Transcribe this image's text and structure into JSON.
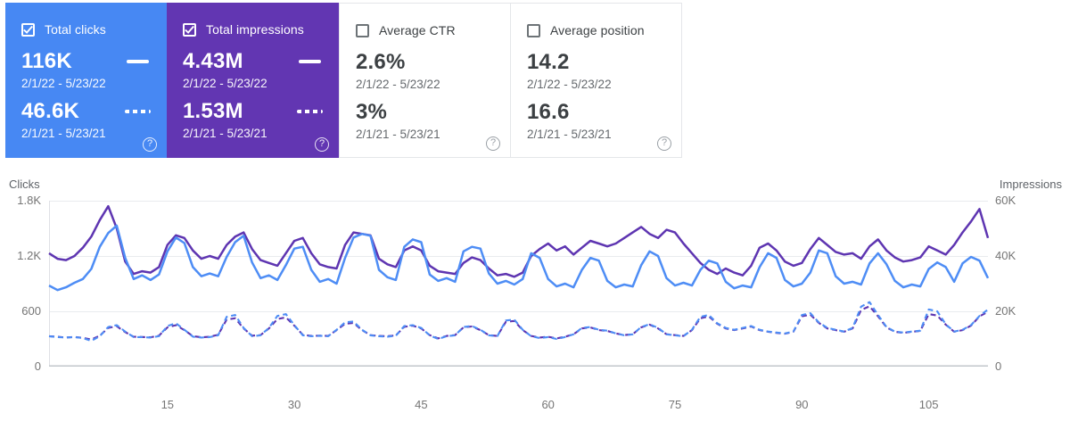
{
  "icons": {
    "help_glyph": "?"
  },
  "colors": {
    "clicks_card_bg": "#4788f3",
    "impressions_card_bg": "#6236b2",
    "clicks_line": "#4e8df5",
    "impressions_line": "#5e35b1",
    "gridline": "#e9ebee",
    "axis_line": "#c2c6cb",
    "tick_text": "#757575"
  },
  "cards": [
    {
      "label": "Total clicks",
      "checked": true,
      "current_value": "116K",
      "current_range": "2/1/22 - 5/23/22",
      "previous_value": "46.6K",
      "previous_range": "2/1/21 - 5/23/21"
    },
    {
      "label": "Total impressions",
      "checked": true,
      "current_value": "4.43M",
      "current_range": "2/1/22 - 5/23/22",
      "previous_value": "1.53M",
      "previous_range": "2/1/21 - 5/23/21"
    },
    {
      "label": "Average CTR",
      "checked": false,
      "current_value": "2.6%",
      "current_range": "2/1/22 - 5/23/22",
      "previous_value": "3%",
      "previous_range": "2/1/21 - 5/23/21"
    },
    {
      "label": "Average position",
      "checked": false,
      "current_value": "14.2",
      "current_range": "2/1/22 - 5/23/22",
      "previous_value": "16.6",
      "previous_range": "2/1/21 - 5/23/21"
    }
  ],
  "chart_data": {
    "type": "line",
    "days": 112,
    "x_ticks": [
      15,
      30,
      45,
      60,
      75,
      90,
      105
    ],
    "left_axis": {
      "label": "Clicks",
      "ticks": [
        "1.8K",
        "1.2K",
        "600",
        "0"
      ],
      "max": 1800
    },
    "right_axis": {
      "label": "Impressions",
      "ticks": [
        "60K",
        "40K",
        "20K",
        "0"
      ],
      "max": 60000
    },
    "grid": true,
    "series": [
      {
        "id": "impressions-previous",
        "name": "Impressions 2/1/21 - 5/23/21",
        "axis": "right",
        "style": "dashed",
        "color": "#5e35b1",
        "values": [
          11000,
          10800,
          10500,
          10700,
          10400,
          9800,
          11200,
          14000,
          14600,
          12500,
          10800,
          10700,
          10600,
          11200,
          14200,
          15000,
          13200,
          11000,
          10600,
          10800,
          11500,
          17000,
          17500,
          13800,
          11200,
          11400,
          13800,
          17200,
          17800,
          14800,
          11500,
          11100,
          11200,
          11100,
          13200,
          15500,
          15800,
          13200,
          11400,
          11100,
          11000,
          11300,
          14400,
          14800,
          13800,
          11400,
          10200,
          11100,
          11400,
          14200,
          14500,
          13200,
          11400,
          11100,
          16200,
          16500,
          13200,
          11100,
          10500,
          10800,
          10200,
          10800,
          11700,
          13800,
          14200,
          13200,
          12900,
          12000,
          11400,
          11700,
          14200,
          15200,
          13800,
          11700,
          11400,
          11100,
          13200,
          17500,
          18200,
          15500,
          13800,
          13200,
          13800,
          14500,
          13200,
          12600,
          12200,
          11900,
          12600,
          18200,
          18800,
          15800,
          13800,
          13200,
          12600,
          13800,
          20500,
          21800,
          18200,
          14200,
          12600,
          12200,
          12600,
          12900,
          19000,
          18500,
          15200,
          12600,
          13200,
          14800,
          18200,
          19800
        ]
      },
      {
        "id": "clicks-previous",
        "name": "Clicks 2/1/21 - 5/23/21",
        "axis": "left",
        "style": "dashed",
        "color": "#4e8df5",
        "values": [
          330,
          320,
          315,
          320,
          310,
          280,
          330,
          430,
          450,
          380,
          320,
          320,
          315,
          330,
          440,
          470,
          400,
          325,
          315,
          320,
          340,
          540,
          560,
          420,
          330,
          340,
          420,
          550,
          570,
          450,
          340,
          330,
          335,
          330,
          400,
          480,
          490,
          400,
          340,
          330,
          325,
          335,
          440,
          450,
          420,
          340,
          300,
          330,
          340,
          430,
          440,
          400,
          340,
          330,
          500,
          510,
          400,
          330,
          310,
          320,
          300,
          320,
          350,
          420,
          430,
          400,
          390,
          360,
          340,
          350,
          430,
          460,
          420,
          350,
          340,
          330,
          400,
          540,
          560,
          470,
          420,
          400,
          420,
          440,
          400,
          380,
          370,
          360,
          380,
          560,
          580,
          480,
          420,
          400,
          380,
          420,
          650,
          700,
          560,
          430,
          380,
          370,
          380,
          390,
          620,
          600,
          460,
          380,
          400,
          450,
          550,
          620
        ]
      },
      {
        "id": "impressions-current",
        "name": "Impressions 2/1/22 - 5/23/22",
        "axis": "right",
        "style": "solid",
        "color": "#5e35b1",
        "values": [
          41000,
          39000,
          38500,
          40000,
          43000,
          47000,
          53000,
          58000,
          50000,
          38000,
          33500,
          34500,
          34000,
          36000,
          44000,
          47500,
          46500,
          42000,
          39000,
          40000,
          39000,
          44000,
          47000,
          48500,
          42500,
          38500,
          37500,
          36500,
          41000,
          45500,
          46500,
          41000,
          37000,
          36000,
          35500,
          44000,
          48500,
          48000,
          47500,
          39000,
          37000,
          36000,
          42000,
          43500,
          42000,
          36500,
          34500,
          34000,
          33500,
          37500,
          39500,
          38500,
          35500,
          33000,
          33500,
          32500,
          34000,
          40000,
          42500,
          44500,
          42000,
          43500,
          40500,
          43000,
          45500,
          44500,
          43500,
          44500,
          46500,
          48500,
          50500,
          48000,
          46500,
          49500,
          48500,
          44500,
          41000,
          37500,
          35000,
          33500,
          35500,
          34000,
          33000,
          36500,
          43000,
          44500,
          42000,
          38000,
          36500,
          37500,
          42500,
          46500,
          44000,
          41500,
          40500,
          41000,
          39000,
          43500,
          46000,
          42000,
          39500,
          38000,
          38500,
          39500,
          43500,
          42000,
          40500,
          44000,
          48500,
          52500,
          57000,
          46500
        ]
      },
      {
        "id": "clicks-current",
        "name": "Clicks 2/1/22 - 5/23/22",
        "axis": "left",
        "style": "solid",
        "color": "#4e8df5",
        "values": [
          880,
          830,
          860,
          910,
          950,
          1060,
          1300,
          1450,
          1530,
          1180,
          950,
          990,
          940,
          1000,
          1250,
          1400,
          1340,
          1080,
          980,
          1010,
          980,
          1190,
          1350,
          1420,
          1130,
          960,
          990,
          940,
          1100,
          1280,
          1300,
          1050,
          920,
          950,
          900,
          1180,
          1400,
          1440,
          1420,
          1050,
          970,
          940,
          1300,
          1380,
          1350,
          1000,
          930,
          960,
          920,
          1250,
          1300,
          1280,
          1010,
          900,
          930,
          890,
          950,
          1230,
          1180,
          950,
          870,
          900,
          860,
          1050,
          1180,
          1150,
          930,
          860,
          890,
          870,
          1100,
          1250,
          1200,
          960,
          880,
          910,
          880,
          1050,
          1150,
          1120,
          920,
          850,
          880,
          860,
          1080,
          1230,
          1180,
          940,
          870,
          900,
          1020,
          1260,
          1230,
          980,
          900,
          920,
          890,
          1120,
          1230,
          1110,
          930,
          860,
          890,
          870,
          1060,
          1130,
          1080,
          920,
          1120,
          1190,
          1150,
          960
        ]
      }
    ]
  }
}
